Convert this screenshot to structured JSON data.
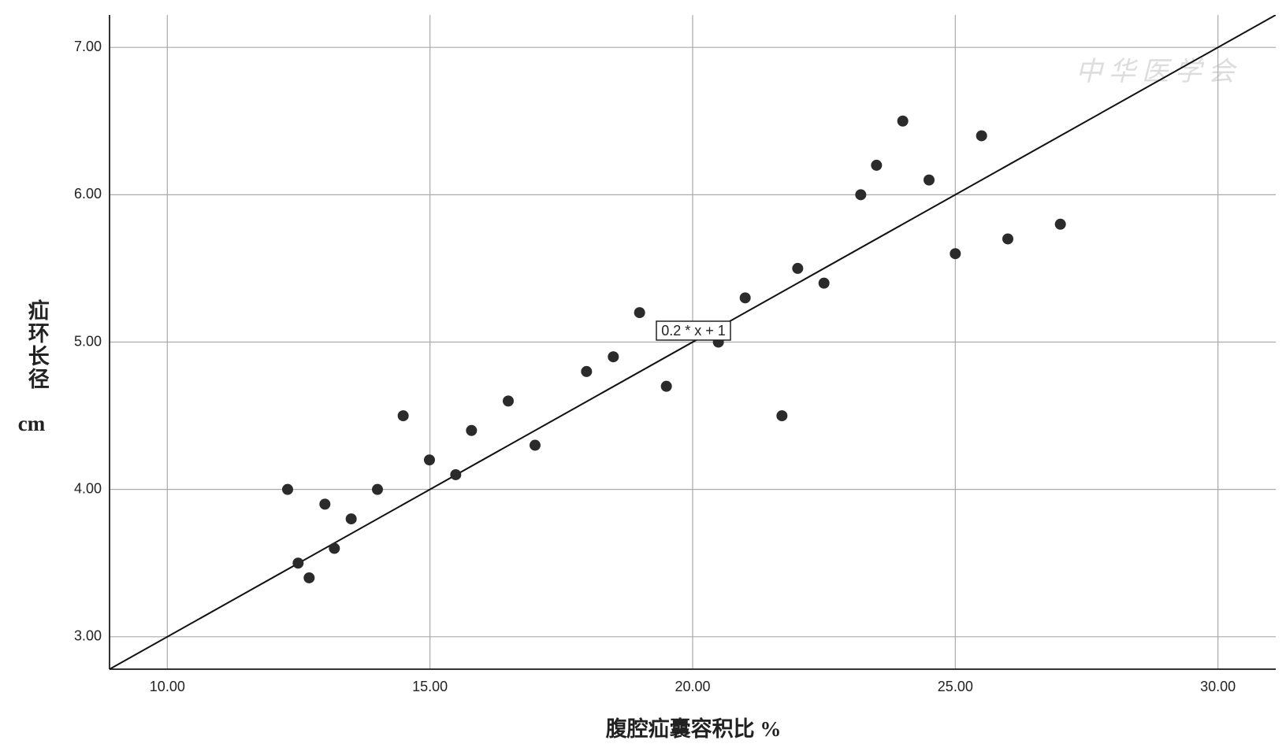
{
  "chart_data": {
    "type": "scatter",
    "x_label": "腹腔疝囊容积比  %",
    "y_label": "疝环长径",
    "y_unit": "cm",
    "watermark": "中华医学会",
    "x": [
      12.29,
      12.49,
      12.7,
      13.0,
      13.18,
      13.5,
      14.0,
      14.49,
      14.99,
      15.49,
      15.79,
      16.49,
      17.0,
      17.98,
      18.49,
      18.99,
      19.5,
      20.49,
      21.0,
      21.7,
      22.0,
      22.5,
      23.2,
      23.5,
      24.0,
      24.5,
      25.0,
      25.5,
      26.0,
      27.0
    ],
    "series": [
      {
        "name": null,
        "color": "#2b2b2b",
        "values": [
          4.0,
          3.5,
          3.4,
          3.9,
          3.6,
          3.8,
          4.0,
          4.5,
          4.2,
          4.1,
          4.4,
          4.6,
          4.3,
          4.8,
          4.9,
          5.2,
          4.7,
          5.0,
          5.3,
          4.5,
          5.5,
          5.4,
          6.0,
          6.2,
          6.5,
          6.1,
          5.6,
          6.4,
          5.7,
          5.8
        ]
      }
    ],
    "fit_line": {
      "slope": 0.2,
      "intercept": 1,
      "label": "0.2 * x + 1",
      "color": "#111111"
    },
    "xlim": [
      8.9,
      31.1
    ],
    "ylim": [
      2.78,
      7.22
    ],
    "xticks": [
      {
        "value": 10,
        "label": "10.00"
      },
      {
        "value": 15,
        "label": "15.00"
      },
      {
        "value": 20,
        "label": "20.00"
      },
      {
        "value": 25,
        "label": "25.00"
      },
      {
        "value": 30,
        "label": "30.00"
      }
    ],
    "yticks": [
      {
        "value": 3,
        "label": "3.00"
      },
      {
        "value": 4,
        "label": "4.00"
      },
      {
        "value": 5,
        "label": "5.00"
      },
      {
        "value": 6,
        "label": "6.00"
      },
      {
        "value": 7,
        "label": "7.00"
      }
    ],
    "grid": true
  }
}
